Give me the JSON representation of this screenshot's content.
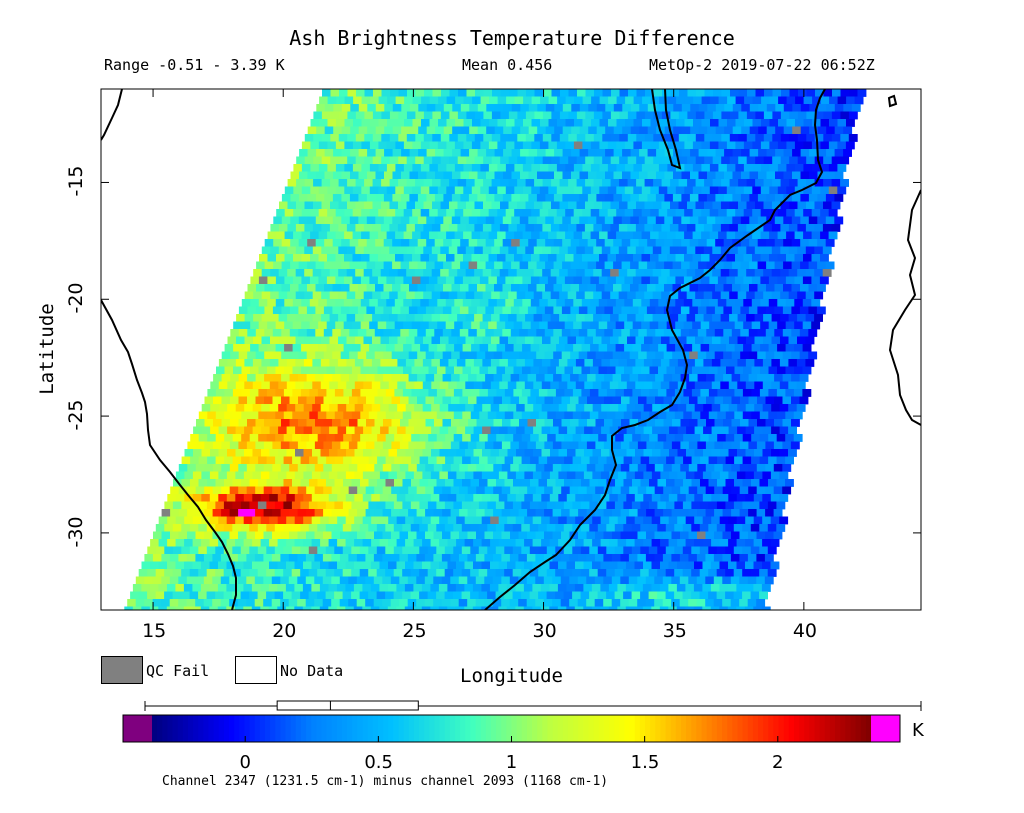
{
  "title": "Ash Brightness Temperature Difference",
  "range_label": "Range -0.51 - 3.39 K",
  "mean_label": "Mean 0.456",
  "satellite_time_label": "MetOp-2 2019-07-22 06:52Z",
  "map": {
    "lon_range": [
      13,
      44.5
    ],
    "lat_range": [
      -33.3,
      -11
    ],
    "x_ticks": [
      "15",
      "20",
      "25",
      "30",
      "35",
      "40"
    ],
    "x_tick_values": [
      15,
      20,
      25,
      30,
      35,
      40
    ],
    "y_ticks": [
      "-15",
      "-20",
      "-25",
      "-30"
    ],
    "y_tick_values": [
      -15,
      -20,
      -25,
      -30
    ],
    "xlabel": "Longitude",
    "ylabel": "Latitude"
  },
  "legend": {
    "qc_fail_label": "QC Fail",
    "qc_fail_color": "#808080",
    "no_data_label": "No Data",
    "no_data_color": "#ffffff"
  },
  "colorbar": {
    "ticks": [
      "0",
      "0.5",
      "1",
      "1.5",
      "2"
    ],
    "tick_values": [
      0,
      0.5,
      1,
      1.5,
      2
    ],
    "range": [
      -0.51,
      3.39
    ],
    "unit": "K",
    "under_color": "#7f007f",
    "over_color": "#ff00ff",
    "stops": [
      "#00007f",
      "#0000ff",
      "#0080ff",
      "#00c0ff",
      "#40ffbf",
      "#bfff40",
      "#ffff00",
      "#ff8000",
      "#ff0000",
      "#7f0000"
    ],
    "boxplot": {
      "whisker_low": -0.51,
      "q1": 0.12,
      "median": 0.32,
      "q3": 0.65,
      "whisker_high": 3.39
    }
  },
  "footnote": "Channel 2347 (1231.5 cm-1) minus channel 2093 (1168 cm-1)"
}
